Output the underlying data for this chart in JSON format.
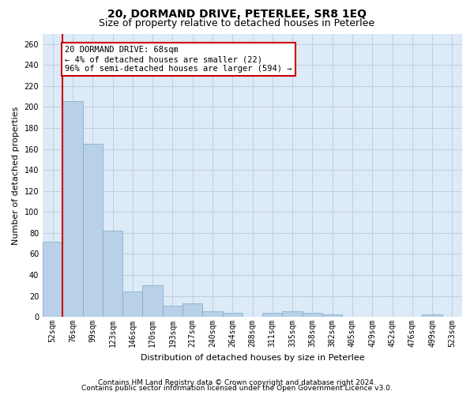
{
  "title": "20, DORMAND DRIVE, PETERLEE, SR8 1EQ",
  "subtitle": "Size of property relative to detached houses in Peterlee",
  "xlabel": "Distribution of detached houses by size in Peterlee",
  "ylabel": "Number of detached properties",
  "categories": [
    "52sqm",
    "76sqm",
    "99sqm",
    "123sqm",
    "146sqm",
    "170sqm",
    "193sqm",
    "217sqm",
    "240sqm",
    "264sqm",
    "288sqm",
    "311sqm",
    "335sqm",
    "358sqm",
    "382sqm",
    "405sqm",
    "429sqm",
    "452sqm",
    "476sqm",
    "499sqm",
    "523sqm"
  ],
  "values": [
    72,
    206,
    165,
    82,
    24,
    30,
    11,
    13,
    5,
    4,
    0,
    4,
    5,
    4,
    2,
    0,
    0,
    0,
    0,
    2,
    0
  ],
  "bar_color": "#b8d0e8",
  "bar_edge_color": "#7aaac8",
  "annotation_text": "20 DORMAND DRIVE: 68sqm\n← 4% of detached houses are smaller (22)\n96% of semi-detached houses are larger (594) →",
  "annotation_box_color": "#ffffff",
  "annotation_box_edge_color": "#cc0000",
  "red_line_color": "#cc0000",
  "ylim": [
    0,
    270
  ],
  "yticks": [
    0,
    20,
    40,
    60,
    80,
    100,
    120,
    140,
    160,
    180,
    200,
    220,
    240,
    260
  ],
  "grid_color": "#c0d0e0",
  "bg_color": "#ddeaf7",
  "footer_line1": "Contains HM Land Registry data © Crown copyright and database right 2024.",
  "footer_line2": "Contains public sector information licensed under the Open Government Licence v3.0.",
  "title_fontsize": 10,
  "subtitle_fontsize": 9,
  "axis_label_fontsize": 8,
  "tick_fontsize": 7,
  "annotation_fontsize": 7.5,
  "footer_fontsize": 6.5
}
